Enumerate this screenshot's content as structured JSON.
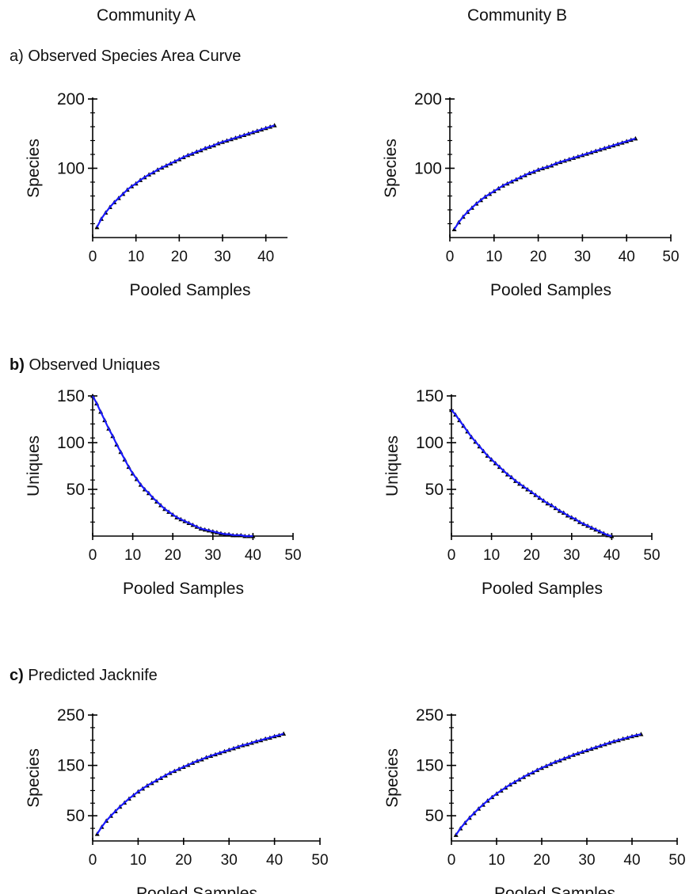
{
  "header": {
    "community_a": "Community A",
    "community_b": "Community B"
  },
  "sections": {
    "a": {
      "letter": "a)",
      "title": "Observed Species Area Curve"
    },
    "b": {
      "letter": "b)",
      "title": "Observed Uniques"
    },
    "c": {
      "letter": "c)",
      "title": "Predicted Jacknife"
    }
  },
  "colors": {
    "curve": "#1a1aff",
    "points": "#000000",
    "axis": "#000000"
  },
  "chart_data": [
    {
      "id": "a-A",
      "type": "line",
      "community": "Community A",
      "section": "a",
      "xlabel": "Pooled Samples",
      "ylabel": "Species",
      "xlim": [
        0,
        45
      ],
      "ylim": [
        0,
        200
      ],
      "xticks": [
        0,
        10,
        20,
        30,
        40
      ],
      "yticks": [
        100,
        200
      ],
      "x": [
        1,
        2,
        3,
        4,
        5,
        6,
        7,
        8,
        9,
        10,
        11,
        12,
        13,
        14,
        15,
        16,
        17,
        18,
        19,
        20,
        21,
        22,
        23,
        24,
        25,
        26,
        27,
        28,
        29,
        30,
        31,
        32,
        33,
        34,
        35,
        36,
        37,
        38,
        39,
        40,
        41,
        42
      ],
      "y": [
        15,
        27,
        36,
        44,
        51,
        57,
        63,
        69,
        74,
        78,
        83,
        87,
        91,
        94,
        98,
        101,
        104,
        107,
        110,
        113,
        116,
        119,
        121,
        124,
        126,
        129,
        131,
        133,
        136,
        138,
        140,
        142,
        144,
        146,
        148,
        150,
        152,
        154,
        156,
        158,
        160,
        162
      ]
    },
    {
      "id": "a-B",
      "type": "line",
      "community": "Community B",
      "section": "a",
      "xlabel": "Pooled Samples",
      "ylabel": "Species",
      "xlim": [
        0,
        50
      ],
      "ylim": [
        0,
        200
      ],
      "xticks": [
        0,
        10,
        20,
        30,
        40,
        50
      ],
      "yticks": [
        100,
        200
      ],
      "x": [
        1,
        2,
        3,
        4,
        5,
        6,
        7,
        8,
        9,
        10,
        11,
        12,
        13,
        14,
        15,
        16,
        17,
        18,
        19,
        20,
        21,
        22,
        23,
        24,
        25,
        26,
        27,
        28,
        29,
        30,
        31,
        32,
        33,
        34,
        35,
        36,
        37,
        38,
        39,
        40,
        41,
        42
      ],
      "y": [
        12,
        22,
        30,
        37,
        43,
        49,
        54,
        59,
        63,
        67,
        71,
        75,
        78,
        81,
        84,
        87,
        90,
        93,
        95,
        98,
        100,
        102,
        104,
        107,
        109,
        111,
        113,
        115,
        117,
        119,
        121,
        123,
        125,
        127,
        129,
        131,
        133,
        135,
        137,
        139,
        141,
        143
      ]
    },
    {
      "id": "b-A",
      "type": "line",
      "community": "Community A",
      "section": "b",
      "xlabel": "Pooled Samples",
      "ylabel": "Uniques",
      "xlim": [
        0,
        50
      ],
      "ylim": [
        0,
        150
      ],
      "xticks": [
        0,
        10,
        20,
        30,
        40,
        50
      ],
      "yticks": [
        50,
        100,
        150
      ],
      "x": [
        0,
        1,
        2,
        3,
        4,
        5,
        6,
        7,
        8,
        9,
        10,
        11,
        12,
        13,
        14,
        15,
        16,
        17,
        18,
        19,
        20,
        21,
        22,
        23,
        24,
        25,
        26,
        27,
        28,
        29,
        30,
        31,
        32,
        33,
        34,
        35,
        36,
        37,
        38,
        39,
        40
      ],
      "y": [
        150,
        142,
        133,
        124,
        115,
        107,
        98,
        90,
        82,
        74,
        67,
        61,
        55,
        50,
        46,
        41,
        37,
        33,
        29,
        26,
        23,
        20,
        18,
        16,
        14,
        12,
        10,
        8,
        7,
        6,
        5,
        4,
        3,
        2,
        2,
        1,
        1,
        1,
        0,
        0,
        0
      ]
    },
    {
      "id": "b-B",
      "type": "line",
      "community": "Community B",
      "section": "b",
      "xlabel": "Pooled Samples",
      "ylabel": "Uniques",
      "xlim": [
        0,
        50
      ],
      "ylim": [
        0,
        150
      ],
      "xticks": [
        0,
        10,
        20,
        30,
        40,
        50
      ],
      "yticks": [
        50,
        100,
        150
      ],
      "x": [
        0,
        1,
        2,
        3,
        4,
        5,
        6,
        7,
        8,
        9,
        10,
        11,
        12,
        13,
        14,
        15,
        16,
        17,
        18,
        19,
        20,
        21,
        22,
        23,
        24,
        25,
        26,
        27,
        28,
        29,
        30,
        31,
        32,
        33,
        34,
        35,
        36,
        37,
        38,
        39,
        40
      ],
      "y": [
        135,
        130,
        124,
        118,
        112,
        106,
        101,
        96,
        91,
        86,
        82,
        78,
        74,
        70,
        66,
        63,
        59,
        56,
        53,
        50,
        47,
        44,
        41,
        38,
        35,
        33,
        30,
        27,
        25,
        22,
        20,
        18,
        15,
        13,
        11,
        9,
        7,
        5,
        3,
        1,
        0
      ]
    },
    {
      "id": "c-A",
      "type": "line",
      "community": "Community A",
      "section": "c",
      "xlabel": "Pooled Samples",
      "ylabel": "Species",
      "xlim": [
        0,
        50
      ],
      "ylim": [
        0,
        250
      ],
      "xticks": [
        0,
        10,
        20,
        30,
        40,
        50
      ],
      "yticks": [
        50,
        150,
        250
      ],
      "x": [
        1,
        2,
        3,
        4,
        5,
        6,
        7,
        8,
        9,
        10,
        11,
        12,
        13,
        14,
        15,
        16,
        17,
        18,
        19,
        20,
        21,
        22,
        23,
        24,
        25,
        26,
        27,
        28,
        29,
        30,
        31,
        32,
        33,
        34,
        35,
        36,
        37,
        38,
        39,
        40,
        41,
        42
      ],
      "y": [
        14,
        28,
        40,
        50,
        59,
        68,
        76,
        84,
        91,
        98,
        104,
        110,
        115,
        120,
        125,
        130,
        135,
        139,
        143,
        147,
        151,
        155,
        159,
        162,
        166,
        169,
        172,
        175,
        178,
        181,
        184,
        187,
        190,
        192,
        195,
        198,
        200,
        203,
        205,
        208,
        210,
        213
      ]
    },
    {
      "id": "c-B",
      "type": "line",
      "community": "Community B",
      "section": "c",
      "xlabel": "Pooled Samples",
      "ylabel": "Species",
      "xlim": [
        0,
        50
      ],
      "ylim": [
        0,
        250
      ],
      "xticks": [
        0,
        10,
        20,
        30,
        40,
        50
      ],
      "yticks": [
        50,
        150,
        250
      ],
      "x": [
        1,
        2,
        3,
        4,
        5,
        6,
        7,
        8,
        9,
        10,
        11,
        12,
        13,
        14,
        15,
        16,
        17,
        18,
        19,
        20,
        21,
        22,
        23,
        24,
        25,
        26,
        27,
        28,
        29,
        30,
        31,
        32,
        33,
        34,
        35,
        36,
        37,
        38,
        39,
        40,
        41,
        42
      ],
      "y": [
        12,
        25,
        36,
        46,
        55,
        64,
        72,
        80,
        87,
        94,
        100,
        106,
        112,
        117,
        122,
        127,
        132,
        136,
        141,
        145,
        149,
        153,
        157,
        160,
        164,
        167,
        171,
        174,
        177,
        180,
        183,
        186,
        189,
        192,
        195,
        198,
        200,
        203,
        205,
        208,
        210,
        212
      ]
    }
  ]
}
